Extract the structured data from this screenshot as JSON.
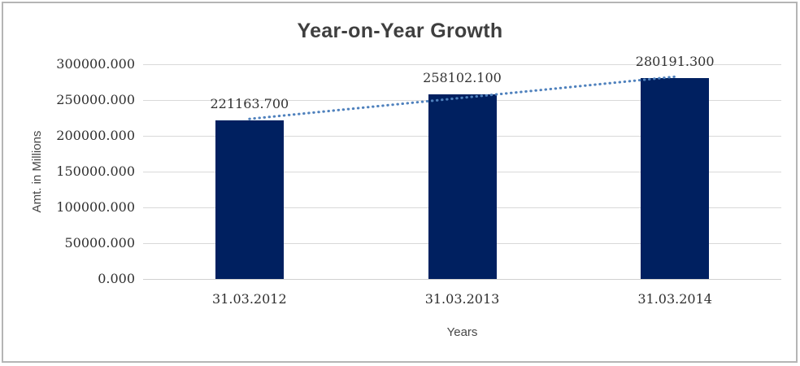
{
  "chart_data": {
    "type": "bar",
    "title": "Year-on-Year Growth",
    "xlabel": "Years",
    "ylabel": "Amt. in Millions",
    "categories": [
      "31.03.2012",
      "31.03.2013",
      "31.03.2014"
    ],
    "values": [
      221163.7,
      258102.1,
      280191.3
    ],
    "data_labels": [
      "221163.700",
      "258102.100",
      "280191.300"
    ],
    "ylim": [
      0,
      300000
    ],
    "y_tick_step": 50000,
    "y_tick_labels": [
      "0.000",
      "50000.000",
      "100000.000",
      "150000.000",
      "200000.000",
      "250000.000",
      "300000.000"
    ],
    "grid": true,
    "legend": false,
    "bar_color": "#002060",
    "trendline": {
      "type": "linear",
      "style": "dotted",
      "color": "#4f81bd"
    },
    "colors": {
      "gridline": "#d9d9d9",
      "axis_line": "#d0d0d0",
      "title_text": "#3f3f3f",
      "tick_text": "#303030",
      "axis_title_text": "#474747",
      "frame_border": "#b5b5b5",
      "background": "#ffffff"
    }
  }
}
